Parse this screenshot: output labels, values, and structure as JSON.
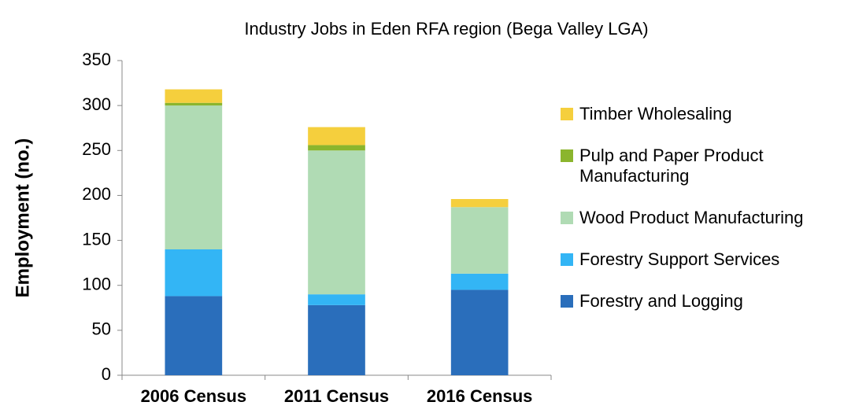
{
  "chart_data": {
    "type": "stacked_bar",
    "title": "Industry Jobs in Eden RFA region (Bega Valley LGA)",
    "y_label": "Employment (no.)",
    "categories": [
      "2006 Census",
      "2011 Census",
      "2016 Census"
    ],
    "series": [
      {
        "name": "Forestry and Logging",
        "color": "#2a6ebb",
        "values": [
          88,
          78,
          95
        ]
      },
      {
        "name": "Forestry Support Services",
        "color": "#33b5f5",
        "values": [
          52,
          12,
          18
        ]
      },
      {
        "name": "Wood Product Manufacturing",
        "color": "#b0dbb4",
        "values": [
          160,
          160,
          74
        ]
      },
      {
        "name": "Pulp and Paper Product Manufacturing",
        "color": "#8bb52d",
        "values": [
          3,
          6,
          0
        ]
      },
      {
        "name": "Timber Wholesaling",
        "color": "#f5cf3d",
        "values": [
          15,
          20,
          9
        ]
      }
    ],
    "ylim": [
      0,
      350
    ],
    "yticks": [
      0,
      50,
      100,
      150,
      200,
      250,
      300,
      350
    ],
    "legend": "right"
  }
}
